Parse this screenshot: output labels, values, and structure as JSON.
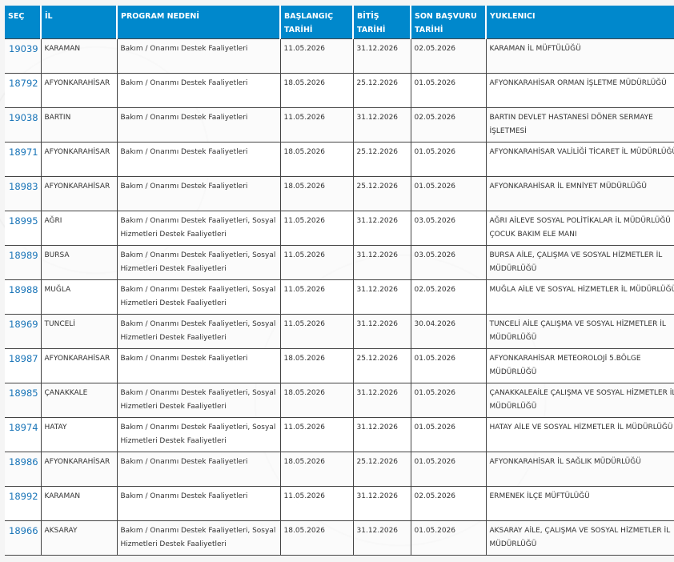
{
  "headers": {
    "sec": "SEÇ",
    "il": "İL",
    "program": "PROGRAM NEDENİ",
    "baslangic": "BAŞLANGIÇ TARİHİ",
    "bitis": "BİTİŞ TARİHİ",
    "son_basvuru": "SON BAŞVURU TARİHİ",
    "yuklenici": "YUKLENICI"
  },
  "colors": {
    "header_bg": "#0088cc",
    "link": "#1a75b8"
  },
  "rows": [
    {
      "sec": "19039",
      "il": "KARAMAN",
      "program": "Bakım / Onarımı Destek Faaliyetleri",
      "baslangic": "11.05.2026",
      "bitis": "31.12.2026",
      "son": "02.05.2026",
      "yuklenici": "KARAMAN İL MÜFTÜLÜĞÜ"
    },
    {
      "sec": "18792",
      "il": "AFYONKARAHİSAR",
      "program": "Bakım / Onarımı Destek Faaliyetleri",
      "baslangic": "18.05.2026",
      "bitis": "25.12.2026",
      "son": "01.05.2026",
      "yuklenici": "AFYONKARAHİSAR ORMAN İŞLETME MÜDÜRLÜĞÜ"
    },
    {
      "sec": "19038",
      "il": "BARTIN",
      "program": "Bakım / Onarımı Destek Faaliyetleri",
      "baslangic": "11.05.2026",
      "bitis": "31.12.2026",
      "son": "02.05.2026",
      "yuklenici": "BARTIN DEVLET HASTANESİ DÖNER SERMAYE İŞLETMESİ"
    },
    {
      "sec": "18971",
      "il": "AFYONKARAHİSAR",
      "program": "Bakım / Onarımı Destek Faaliyetleri",
      "baslangic": "18.05.2026",
      "bitis": "25.12.2026",
      "son": "01.05.2026",
      "yuklenici": "AFYONKARAHİSAR VALİLİĞİ TİCARET İL MÜDÜRLÜĞÜ"
    },
    {
      "sec": "18983",
      "il": "AFYONKARAHİSAR",
      "program": "Bakım / Onarımı Destek Faaliyetleri",
      "baslangic": "18.05.2026",
      "bitis": "25.12.2026",
      "son": "01.05.2026",
      "yuklenici": "AFYONKARAHİSAR İL EMNİYET MÜDÜRLÜĞÜ"
    },
    {
      "sec": "18995",
      "il": "AĞRI",
      "program": "Bakım / Onarımı Destek Faaliyetleri, Sosyal Hizmetleri Destek Faaliyetleri",
      "baslangic": "11.05.2026",
      "bitis": "31.12.2026",
      "son": "03.05.2026",
      "yuklenici": "AĞRI AİLEVE SOSYAL POLİTİKALAR İL MÜDÜRLÜĞÜ ÇOCUK BAKIM ELE MANI"
    },
    {
      "sec": "18989",
      "il": "BURSA",
      "program": "Bakım / Onarımı Destek Faaliyetleri, Sosyal Hizmetleri Destek Faaliyetleri",
      "baslangic": "11.05.2026",
      "bitis": "31.12.2026",
      "son": "03.05.2026",
      "yuklenici": "BURSA AİLE, ÇALIŞMA VE SOSYAL HİZMETLER İL MÜDÜRLÜĞÜ"
    },
    {
      "sec": "18988",
      "il": "MUĞLA",
      "program": "Bakım / Onarımı Destek Faaliyetleri, Sosyal Hizmetleri Destek Faaliyetleri",
      "baslangic": "11.05.2026",
      "bitis": "31.12.2026",
      "son": "02.05.2026",
      "yuklenici": "MUĞLA AİLE VE SOSYAL HİZMETLER İL MÜDÜRLÜĞÜ"
    },
    {
      "sec": "18969",
      "il": "TUNCELİ",
      "program": "Bakım / Onarımı Destek Faaliyetleri, Sosyal Hizmetleri Destek Faaliyetleri",
      "baslangic": "11.05.2026",
      "bitis": "31.12.2026",
      "son": "30.04.2026",
      "yuklenici": "TUNCELİ AİLE ÇALIŞMA VE SOSYAL HİZMETLER İL MÜDÜRLÜĞÜ"
    },
    {
      "sec": "18987",
      "il": "AFYONKARAHİSAR",
      "program": "Bakım / Onarımı Destek Faaliyetleri",
      "baslangic": "18.05.2026",
      "bitis": "25.12.2026",
      "son": "01.05.2026",
      "yuklenici": "AFYONKARAHİSAR METEOROLOJİ 5.BÖLGE MÜDÜRLÜĞÜ"
    },
    {
      "sec": "18985",
      "il": "ÇANAKKALE",
      "program": "Bakım / Onarımı Destek Faaliyetleri, Sosyal Hizmetleri Destek Faaliyetleri",
      "baslangic": "18.05.2026",
      "bitis": "31.12.2026",
      "son": "01.05.2026",
      "yuklenici": "ÇANAKKALEAİLE ÇALIŞMA VE SOSYAL HİZMETLER İL MÜDÜRLÜĞÜ"
    },
    {
      "sec": "18974",
      "il": "HATAY",
      "program": "Bakım / Onarımı Destek Faaliyetleri, Sosyal Hizmetleri Destek Faaliyetleri",
      "baslangic": "11.05.2026",
      "bitis": "31.12.2026",
      "son": "01.05.2026",
      "yuklenici": "HATAY AİLE VE SOSYAL HİZMETLER İL MÜDÜRLÜĞÜ"
    },
    {
      "sec": "18986",
      "il": "AFYONKARAHİSAR",
      "program": "Bakım / Onarımı Destek Faaliyetleri",
      "baslangic": "18.05.2026",
      "bitis": "25.12.2026",
      "son": "01.05.2026",
      "yuklenici": "AFYONKARAHİSAR İL SAĞLIK MÜDÜRLÜĞÜ"
    },
    {
      "sec": "18992",
      "il": "KARAMAN",
      "program": "Bakım / Onarımı Destek Faaliyetleri",
      "baslangic": "11.05.2026",
      "bitis": "31.12.2026",
      "son": "02.05.2026",
      "yuklenici": "ERMENEK İLÇE MÜFTÜLÜĞÜ"
    },
    {
      "sec": "18966",
      "il": "AKSARAY",
      "program": "Bakım / Onarımı Destek Faaliyetleri, Sosyal Hizmetleri Destek Faaliyetleri",
      "baslangic": "18.05.2026",
      "bitis": "31.12.2026",
      "son": "01.05.2026",
      "yuklenici": "AKSARAY AİLE, ÇALIŞMA VE SOSYAL HİZMETLER İL MÜDÜRLÜĞÜ"
    }
  ]
}
